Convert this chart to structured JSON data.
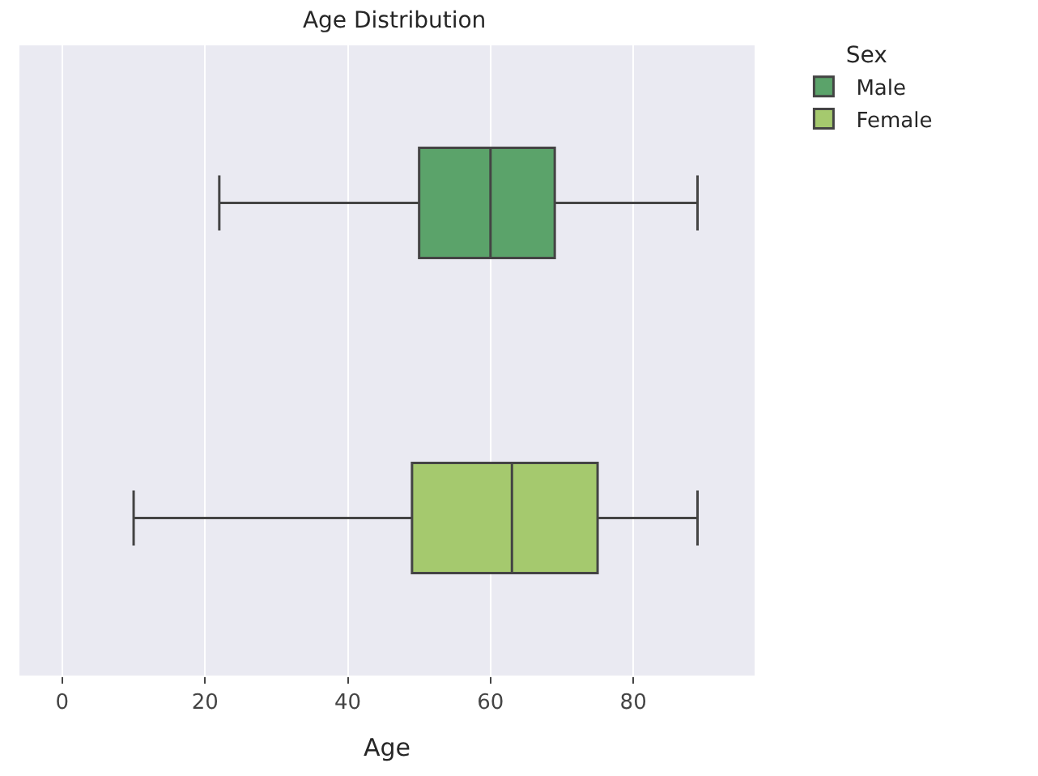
{
  "chart_data": {
    "type": "box",
    "title": "Age Distribution",
    "xlabel": "Age",
    "orientation": "horizontal",
    "categories": [
      null
    ],
    "legend_title": "Sex",
    "series": [
      {
        "name": "Male",
        "color": "#5ba36a",
        "boxes": [
          {
            "low": 22,
            "q1": 50,
            "median": 60,
            "q3": 69,
            "high": 89
          }
        ]
      },
      {
        "name": "Female",
        "color": "#a5c96e",
        "boxes": [
          {
            "low": 10,
            "q1": 49,
            "median": 63,
            "q3": 75,
            "high": 89
          }
        ]
      }
    ],
    "xlim": [
      -6,
      97
    ],
    "xticks": [
      0,
      20,
      40,
      60,
      80
    ],
    "grid": "x",
    "legend": "top right",
    "tick_labels": "x"
  }
}
